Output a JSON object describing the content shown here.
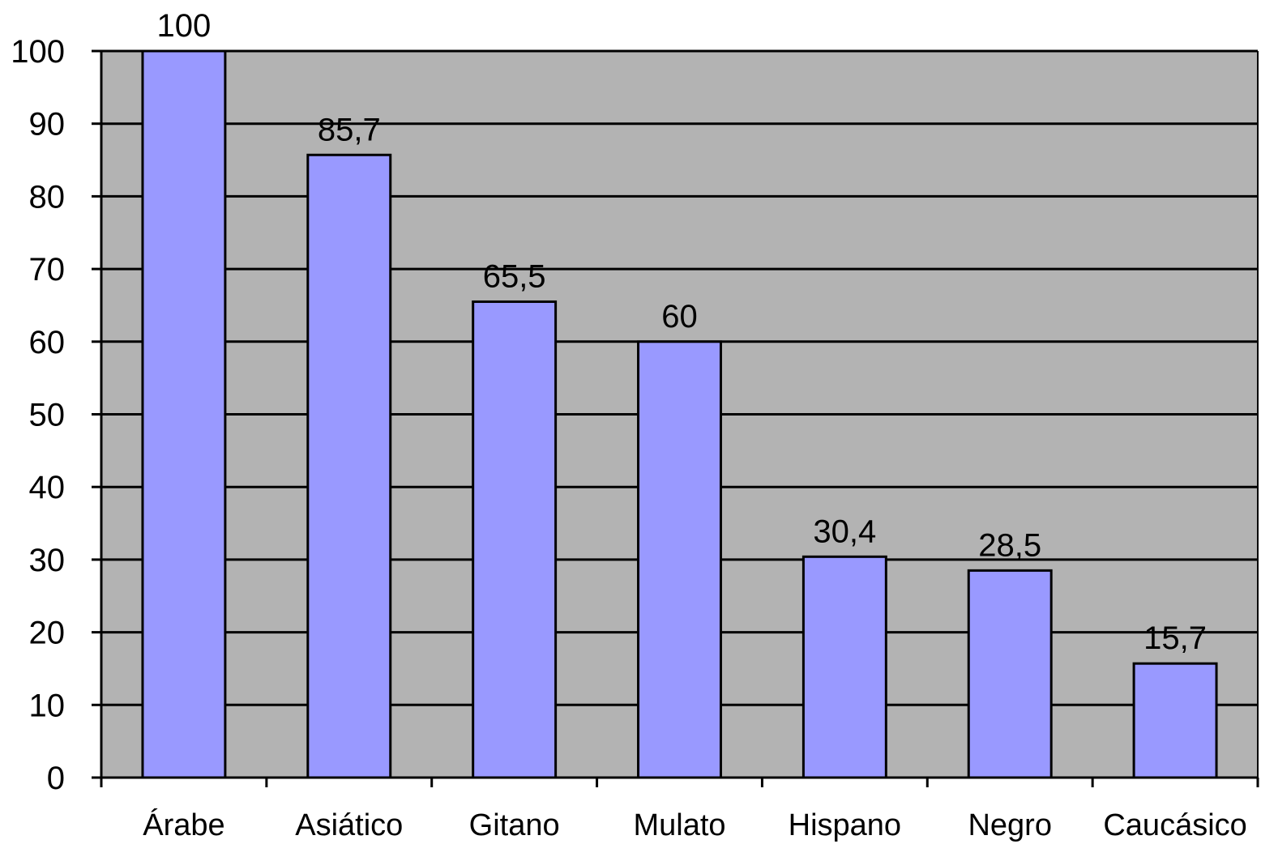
{
  "chart_data": {
    "type": "bar",
    "categories": [
      "Árabe",
      "Asiático",
      "Gitano",
      "Mulato",
      "Hispano",
      "Negro",
      "Caucásico"
    ],
    "values": [
      100,
      85.7,
      65.5,
      60,
      30.4,
      28.5,
      15.7
    ],
    "data_labels": [
      "100",
      "85,7",
      "65,5",
      "60",
      "30,4",
      "28,5",
      "15,7"
    ],
    "yticks": [
      0,
      10,
      20,
      30,
      40,
      50,
      60,
      70,
      80,
      90,
      100
    ],
    "ylim": [
      0,
      100
    ],
    "title": "",
    "xlabel": "",
    "ylabel": "",
    "grid": true,
    "legend": "none",
    "colors": {
      "plot_background": "#b3b3b3",
      "bar_fill": "#9999ff",
      "bar_stroke": "#000000",
      "gridline": "#000000"
    }
  }
}
